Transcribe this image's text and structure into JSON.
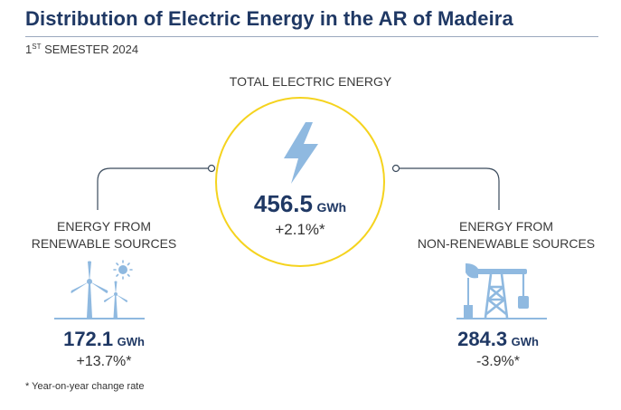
{
  "header": {
    "title": "Distribution of Electric Energy in the AR of Madeira",
    "period_prefix": "1",
    "period_sup": "ST",
    "period_rest": " SEMESTER 2024"
  },
  "total": {
    "label": "TOTAL ELECTRIC ENERGY",
    "value": "456.5",
    "unit": "GWh",
    "change": "+2.1%*",
    "icon": "lightning-bolt-icon"
  },
  "renewable": {
    "label_line1": "ENERGY FROM",
    "label_line2": "RENEWABLE SOURCES",
    "value": "172.1",
    "unit": "GWh",
    "change": "+13.7%*",
    "icon": "wind-turbine-sun-icon"
  },
  "non_renewable": {
    "label_line1": "ENERGY FROM",
    "label_line2": "NON-RENEWABLE SOURCES",
    "value": "284.3",
    "unit": "GWh",
    "change": "-3.9%*",
    "icon": "oil-pump-icon"
  },
  "footnote": "* Year-on-year change rate",
  "colors": {
    "navy": "#1f3864",
    "yellow": "#f5d31e",
    "icon_blue": "#8fb9e0",
    "connector": "#3a4a5c"
  }
}
